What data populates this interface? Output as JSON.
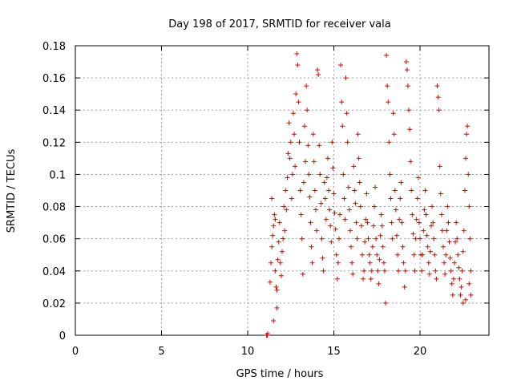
{
  "chart_data": {
    "type": "scatter",
    "title": "Day 198 of 2017, SRMTID for receiver vala",
    "xlabel": "GPS time / hours",
    "ylabel": "SRMTID / TECUs",
    "xlim": [
      0,
      24
    ],
    "ylim": [
      0,
      0.18
    ],
    "x_ticks": [
      0,
      5,
      10,
      15,
      20
    ],
    "x_tick_labels": [
      "0",
      "5",
      "10",
      "15",
      "20"
    ],
    "y_ticks": [
      0,
      0.02,
      0.04,
      0.06,
      0.08,
      0.1,
      0.12,
      0.14,
      0.16,
      0.18
    ],
    "y_tick_labels": [
      "0",
      "0.02",
      "0.04",
      "0.06",
      "0.08",
      "0.1",
      "0.12",
      "0.14",
      "0.16",
      "0.18"
    ],
    "grid": true,
    "marker": "+",
    "marker_color": "#e00000",
    "series": [
      {
        "name": "SRMTID",
        "points": [
          [
            11.1,
            0.0
          ],
          [
            11.12,
            0.0
          ],
          [
            11.14,
            0.0
          ],
          [
            11.16,
            0.001
          ],
          [
            11.3,
            0.033
          ],
          [
            11.35,
            0.045
          ],
          [
            11.4,
            0.055
          ],
          [
            11.45,
            0.062
          ],
          [
            11.5,
            0.068
          ],
          [
            11.55,
            0.075
          ],
          [
            11.6,
            0.04
          ],
          [
            11.65,
            0.03
          ],
          [
            11.7,
            0.028
          ],
          [
            11.75,
            0.047
          ],
          [
            11.8,
            0.058
          ],
          [
            11.85,
            0.07
          ],
          [
            11.9,
            0.045
          ],
          [
            11.95,
            0.037
          ],
          [
            12.0,
            0.052
          ],
          [
            12.05,
            0.06
          ],
          [
            12.1,
            0.08
          ],
          [
            12.15,
            0.065
          ],
          [
            11.5,
            0.009
          ],
          [
            11.7,
            0.017
          ],
          [
            11.4,
            0.085
          ],
          [
            11.6,
            0.072
          ],
          [
            12.2,
            0.09
          ],
          [
            12.25,
            0.078
          ],
          [
            12.3,
            0.098
          ],
          [
            12.35,
            0.113
          ],
          [
            12.4,
            0.132
          ],
          [
            12.45,
            0.11
          ],
          [
            12.5,
            0.12
          ],
          [
            12.55,
            0.085
          ],
          [
            12.6,
            0.1
          ],
          [
            12.65,
            0.138
          ],
          [
            12.7,
            0.125
          ],
          [
            12.75,
            0.105
          ],
          [
            12.8,
            0.15
          ],
          [
            12.85,
            0.175
          ],
          [
            12.9,
            0.168
          ],
          [
            12.95,
            0.145
          ],
          [
            13.0,
            0.12
          ],
          [
            13.05,
            0.09
          ],
          [
            13.1,
            0.075
          ],
          [
            13.15,
            0.06
          ],
          [
            13.2,
            0.038
          ],
          [
            13.25,
            0.095
          ],
          [
            13.3,
            0.13
          ],
          [
            13.35,
            0.108
          ],
          [
            13.4,
            0.155
          ],
          [
            13.45,
            0.14
          ],
          [
            13.5,
            0.118
          ],
          [
            13.55,
            0.1
          ],
          [
            13.6,
            0.086
          ],
          [
            13.65,
            0.07
          ],
          [
            13.7,
            0.055
          ],
          [
            13.75,
            0.045
          ],
          [
            13.8,
            0.125
          ],
          [
            13.85,
            0.108
          ],
          [
            13.9,
            0.09
          ],
          [
            13.95,
            0.078
          ],
          [
            14.0,
            0.065
          ],
          [
            14.05,
            0.165
          ],
          [
            14.1,
            0.162
          ],
          [
            14.15,
            0.118
          ],
          [
            14.2,
            0.1
          ],
          [
            14.25,
            0.082
          ],
          [
            14.3,
            0.06
          ],
          [
            14.35,
            0.048
          ],
          [
            14.4,
            0.04
          ],
          [
            14.45,
            0.095
          ],
          [
            14.5,
            0.085
          ],
          [
            14.55,
            0.072
          ],
          [
            14.6,
            0.098
          ],
          [
            14.65,
            0.11
          ],
          [
            14.7,
            0.09
          ],
          [
            14.75,
            0.078
          ],
          [
            14.8,
            0.068
          ],
          [
            14.85,
            0.058
          ],
          [
            14.9,
            0.12
          ],
          [
            14.95,
            0.104
          ],
          [
            15.0,
            0.088
          ],
          [
            15.05,
            0.076
          ],
          [
            15.1,
            0.066
          ],
          [
            15.15,
            0.05
          ],
          [
            15.2,
            0.035
          ],
          [
            15.25,
            0.045
          ],
          [
            15.3,
            0.06
          ],
          [
            15.35,
            0.075
          ],
          [
            15.4,
            0.168
          ],
          [
            15.45,
            0.145
          ],
          [
            15.5,
            0.13
          ],
          [
            15.55,
            0.1
          ],
          [
            15.6,
            0.085
          ],
          [
            15.65,
            0.072
          ],
          [
            15.7,
            0.16
          ],
          [
            15.75,
            0.138
          ],
          [
            15.8,
            0.12
          ],
          [
            15.85,
            0.092
          ],
          [
            15.9,
            0.078
          ],
          [
            15.95,
            0.065
          ],
          [
            16.0,
            0.055
          ],
          [
            16.05,
            0.045
          ],
          [
            16.1,
            0.038
          ],
          [
            16.15,
            0.105
          ],
          [
            16.2,
            0.09
          ],
          [
            16.25,
            0.082
          ],
          [
            16.3,
            0.07
          ],
          [
            16.35,
            0.06
          ],
          [
            16.4,
            0.125
          ],
          [
            16.45,
            0.11
          ],
          [
            16.5,
            0.095
          ],
          [
            16.55,
            0.08
          ],
          [
            16.6,
            0.068
          ],
          [
            16.65,
            0.05
          ],
          [
            16.7,
            0.035
          ],
          [
            16.75,
            0.04
          ],
          [
            16.8,
            0.058
          ],
          [
            16.85,
            0.072
          ],
          [
            16.9,
            0.088
          ],
          [
            16.95,
            0.07
          ],
          [
            17.0,
            0.06
          ],
          [
            17.05,
            0.05
          ],
          [
            17.1,
            0.045
          ],
          [
            17.15,
            0.035
          ],
          [
            17.2,
            0.04
          ],
          [
            17.25,
            0.055
          ],
          [
            17.3,
            0.068
          ],
          [
            17.35,
            0.08
          ],
          [
            17.4,
            0.092
          ],
          [
            17.45,
            0.06
          ],
          [
            17.5,
            0.05
          ],
          [
            17.55,
            0.04
          ],
          [
            17.6,
            0.032
          ],
          [
            17.65,
            0.047
          ],
          [
            17.7,
            0.062
          ],
          [
            17.75,
            0.075
          ],
          [
            17.8,
            0.068
          ],
          [
            17.85,
            0.055
          ],
          [
            17.9,
            0.045
          ],
          [
            17.95,
            0.04
          ],
          [
            18.0,
            0.02
          ],
          [
            18.05,
            0.174
          ],
          [
            18.1,
            0.155
          ],
          [
            18.15,
            0.145
          ],
          [
            18.2,
            0.12
          ],
          [
            18.25,
            0.1
          ],
          [
            18.3,
            0.085
          ],
          [
            18.35,
            0.07
          ],
          [
            18.4,
            0.06
          ],
          [
            18.45,
            0.138
          ],
          [
            18.5,
            0.125
          ],
          [
            18.55,
            0.09
          ],
          [
            18.6,
            0.078
          ],
          [
            18.65,
            0.062
          ],
          [
            18.7,
            0.05
          ],
          [
            18.75,
            0.04
          ],
          [
            18.8,
            0.072
          ],
          [
            18.85,
            0.085
          ],
          [
            18.9,
            0.095
          ],
          [
            18.95,
            0.07
          ],
          [
            19.0,
            0.055
          ],
          [
            19.05,
            0.045
          ],
          [
            19.1,
            0.03
          ],
          [
            19.15,
            0.04
          ],
          [
            19.2,
            0.17
          ],
          [
            19.25,
            0.165
          ],
          [
            19.3,
            0.155
          ],
          [
            19.35,
            0.14
          ],
          [
            19.4,
            0.128
          ],
          [
            19.45,
            0.108
          ],
          [
            19.5,
            0.09
          ],
          [
            19.55,
            0.075
          ],
          [
            19.6,
            0.063
          ],
          [
            19.65,
            0.05
          ],
          [
            19.7,
            0.04
          ],
          [
            19.75,
            0.06
          ],
          [
            19.8,
            0.072
          ],
          [
            19.85,
            0.085
          ],
          [
            19.9,
            0.098
          ],
          [
            19.95,
            0.07
          ],
          [
            20.0,
            0.06
          ],
          [
            20.05,
            0.05
          ],
          [
            20.1,
            0.04
          ],
          [
            20.15,
            0.05
          ],
          [
            20.2,
            0.065
          ],
          [
            20.25,
            0.078
          ],
          [
            20.3,
            0.09
          ],
          [
            20.35,
            0.075
          ],
          [
            20.4,
            0.062
          ],
          [
            20.45,
            0.055
          ],
          [
            20.5,
            0.045
          ],
          [
            20.55,
            0.038
          ],
          [
            20.6,
            0.052
          ],
          [
            20.65,
            0.068
          ],
          [
            20.7,
            0.08
          ],
          [
            20.75,
            0.07
          ],
          [
            20.8,
            0.06
          ],
          [
            20.85,
            0.05
          ],
          [
            20.9,
            0.04
          ],
          [
            20.95,
            0.035
          ],
          [
            21.0,
            0.155
          ],
          [
            21.05,
            0.148
          ],
          [
            21.1,
            0.14
          ],
          [
            21.15,
            0.105
          ],
          [
            21.2,
            0.088
          ],
          [
            21.25,
            0.075
          ],
          [
            21.3,
            0.065
          ],
          [
            21.35,
            0.055
          ],
          [
            21.4,
            0.045
          ],
          [
            21.45,
            0.038
          ],
          [
            21.5,
            0.05
          ],
          [
            21.55,
            0.065
          ],
          [
            21.6,
            0.08
          ],
          [
            21.65,
            0.07
          ],
          [
            21.7,
            0.058
          ],
          [
            21.75,
            0.048
          ],
          [
            21.8,
            0.04
          ],
          [
            21.85,
            0.032
          ],
          [
            21.9,
            0.025
          ],
          [
            21.95,
            0.035
          ],
          [
            22.0,
            0.045
          ],
          [
            22.05,
            0.058
          ],
          [
            22.1,
            0.07
          ],
          [
            22.15,
            0.06
          ],
          [
            22.2,
            0.05
          ],
          [
            22.25,
            0.042
          ],
          [
            22.3,
            0.035
          ],
          [
            22.35,
            0.025
          ],
          [
            22.4,
            0.03
          ],
          [
            22.45,
            0.04
          ],
          [
            22.5,
            0.052
          ],
          [
            22.55,
            0.065
          ],
          [
            22.6,
            0.09
          ],
          [
            22.65,
            0.11
          ],
          [
            22.7,
            0.125
          ],
          [
            22.75,
            0.13
          ],
          [
            22.8,
            0.1
          ],
          [
            22.85,
            0.08
          ],
          [
            22.9,
            0.06
          ],
          [
            22.95,
            0.04
          ],
          [
            22.5,
            0.02
          ],
          [
            22.65,
            0.022
          ],
          [
            22.85,
            0.032
          ],
          [
            22.95,
            0.025
          ]
        ]
      }
    ]
  }
}
